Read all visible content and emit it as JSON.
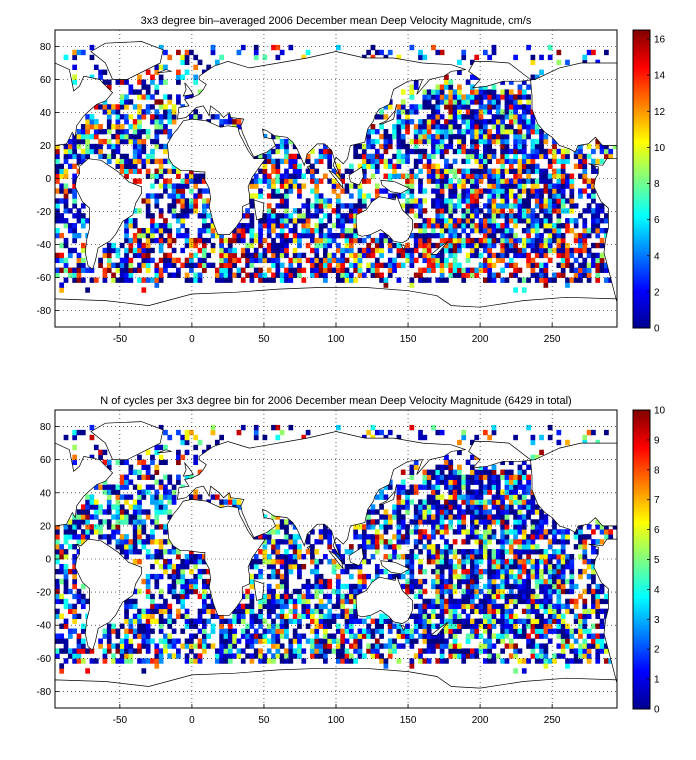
{
  "chart_data": [
    {
      "type": "heatmap",
      "title": "3x3 degree bin–averaged 2006 December mean Deep Velocity Magnitude, cm/s",
      "xlabel": "",
      "ylabel": "",
      "xlim": [
        -95,
        295
      ],
      "ylim": [
        -90,
        90
      ],
      "xticks": [
        -50,
        0,
        50,
        100,
        150,
        200,
        250
      ],
      "yticks": [
        -80,
        -60,
        -40,
        -20,
        0,
        20,
        40,
        60,
        80
      ],
      "grid": true,
      "bin_size_deg": 3,
      "colorbar": {
        "min": 0,
        "max": 16.5,
        "ticks": [
          0,
          2,
          4,
          6,
          8,
          10,
          12,
          14,
          16
        ]
      },
      "value_range": [
        0,
        16.5
      ]
    },
    {
      "type": "heatmap",
      "title": "N of cycles per 3x3 degree bin for 2006 December mean Deep Velocity Magnitude (6429 in total)",
      "xlabel": "",
      "ylabel": "",
      "xlim": [
        -95,
        295
      ],
      "ylim": [
        -90,
        90
      ],
      "xticks": [
        -50,
        0,
        50,
        100,
        150,
        200,
        250
      ],
      "yticks": [
        -80,
        -60,
        -40,
        -20,
        0,
        20,
        40,
        60,
        80
      ],
      "grid": true,
      "bin_size_deg": 3,
      "colorbar": {
        "min": 0,
        "max": 10,
        "ticks": [
          0,
          1,
          2,
          3,
          4,
          5,
          6,
          7,
          8,
          9,
          10
        ]
      },
      "total_cycles": 6429
    }
  ],
  "colormap": "jet"
}
